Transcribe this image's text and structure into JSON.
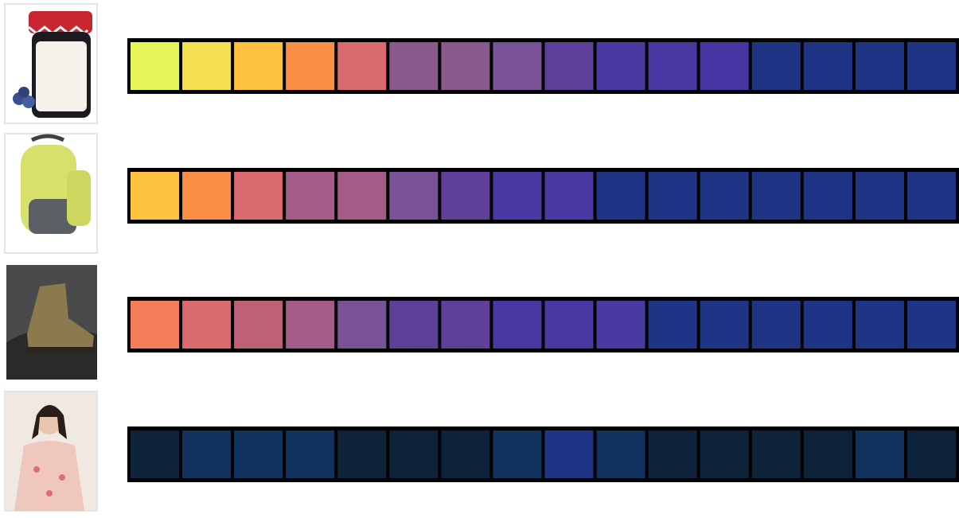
{
  "rows": [
    {
      "cells": [
        "#e8f55a",
        "#f7e04f",
        "#fdc03f",
        "#f98f47",
        "#da6a6d",
        "#8a5a8f",
        "#8a5a8f",
        "#7a5298",
        "#5e3f9a",
        "#483aa0",
        "#4838a2",
        "#4834a2",
        "#1f3485",
        "#1f3485",
        "#1f3485",
        "#1f3485"
      ]
    },
    {
      "cells": [
        "#fdc03f",
        "#f98f47",
        "#da6a6d",
        "#a55b88",
        "#a55b88",
        "#7a5298",
        "#5e3f9a",
        "#4838a2",
        "#4838a2",
        "#1f3485",
        "#1f3485",
        "#1f3485",
        "#1f3485",
        "#1f3485",
        "#1f3485",
        "#1f3485"
      ]
    },
    {
      "cells": [
        "#f47e5c",
        "#da6a6d",
        "#be6078",
        "#a55b88",
        "#7a5298",
        "#5e3f9a",
        "#5e3f9a",
        "#4838a2",
        "#4838a2",
        "#483aa0",
        "#1f3485",
        "#1f3485",
        "#1f3485",
        "#1f3485",
        "#1f3485",
        "#1f3485"
      ]
    },
    {
      "cells": [
        "#0e233a",
        "#11315e",
        "#11315e",
        "#11315e",
        "#0e233a",
        "#0e233a",
        "#0e233a",
        "#11315e",
        "#1f3485",
        "#11315e",
        "#0e233a",
        "#0e233a",
        "#0e233a",
        "#0e233a",
        "#11315e",
        "#0e233a"
      ]
    }
  ]
}
